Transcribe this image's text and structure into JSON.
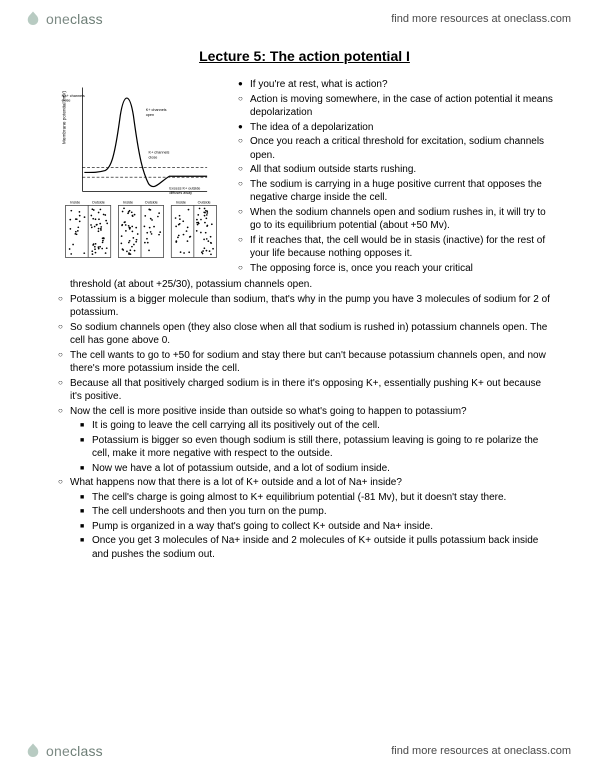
{
  "brand": {
    "one": "one",
    "class": "class"
  },
  "header_link": "find more resources at oneclass.com",
  "footer_link": "find more resources at oneclass.com",
  "title": "Lecture 5: The action potential I",
  "figure": {
    "stroke": "#000000",
    "background": "#ffffff",
    "peak_mv": 50,
    "threshold_mv": -55,
    "rest_mv": -70
  },
  "top_bullets": [
    {
      "lvl": 1,
      "mk": "solid",
      "t": "If you're at rest, what is action?"
    },
    {
      "lvl": 1,
      "mk": "open",
      "t": "Action is moving somewhere, in the case of action potential it means depolarization"
    },
    {
      "lvl": 1,
      "mk": "solid",
      "t": "The idea of a depolarization"
    },
    {
      "lvl": 1,
      "mk": "open",
      "t": "Once you reach a critical threshold for excitation, sodium channels open."
    },
    {
      "lvl": 1,
      "mk": "open",
      "t": "All that sodium outside starts rushing."
    },
    {
      "lvl": 1,
      "mk": "open",
      "t": "The sodium is carrying in a huge positive current that opposes the negative charge inside the cell."
    },
    {
      "lvl": 1,
      "mk": "open",
      "t": "When the sodium channels open and sodium rushes in, it will try to go to its equilibrium potential (about +50 Mv)."
    },
    {
      "lvl": 1,
      "mk": "open",
      "t": "If it reaches that, the cell would be in stasis (inactive) for the rest of your life because nothing opposes it."
    },
    {
      "lvl": 1,
      "mk": "open",
      "t": "The opposing force is, once you reach your critical"
    }
  ],
  "lower_bullets": [
    {
      "lvl": 1,
      "mk": "",
      "t": "threshold (at about +25/30), potassium channels open."
    },
    {
      "lvl": 1,
      "mk": "open",
      "t": "Potassium is a bigger molecule than sodium, that's why in the pump you have 3 molecules of sodium for 2 of potassium."
    },
    {
      "lvl": 1,
      "mk": "open",
      "t": "So sodium channels open (they also close when all that sodium is rushed in) potassium channels open. The cell has gone above 0."
    },
    {
      "lvl": 1,
      "mk": "open",
      "t": "The cell wants to go to +50 for sodium and stay there but can't because potassium channels open, and now there's more potassium inside the cell."
    },
    {
      "lvl": 1,
      "mk": "open",
      "t": "Because all that positively charged sodium is in there it's opposing K+, essentially pushing K+ out because it's positive."
    },
    {
      "lvl": 1,
      "mk": "open",
      "t": "Now the cell is more positive inside than outside so what's going to happen to potassium?"
    },
    {
      "lvl": 2,
      "mk": "square",
      "t": "It is going to leave the cell carrying all its positively out of the cell."
    },
    {
      "lvl": 2,
      "mk": "square",
      "t": "Potassium is bigger so even though sodium is still there, potassium leaving is going to re polarize the cell, make it more negative with respect to the outside."
    },
    {
      "lvl": 2,
      "mk": "square",
      "t": "Now we have a lot of potassium outside, and a lot of sodium inside."
    },
    {
      "lvl": 1,
      "mk": "open",
      "t": "What happens now that there is a lot of K+ outside and a lot of Na+ inside?"
    },
    {
      "lvl": 2,
      "mk": "square",
      "t": "The cell's charge is going almost to K+ equilibrium potential (-81 Mv), but it doesn't stay there."
    },
    {
      "lvl": 2,
      "mk": "square",
      "t": "The cell undershoots and then you turn on the pump."
    },
    {
      "lvl": 2,
      "mk": "square",
      "t": "Pump is organized in a way that's going to collect K+ outside and Na+ inside."
    },
    {
      "lvl": 2,
      "mk": "square",
      "t": "Once you get 3 molecules of Na+ inside and 2 molecules of K+ outside it pulls potassium back inside and pushes the sodium out."
    }
  ]
}
